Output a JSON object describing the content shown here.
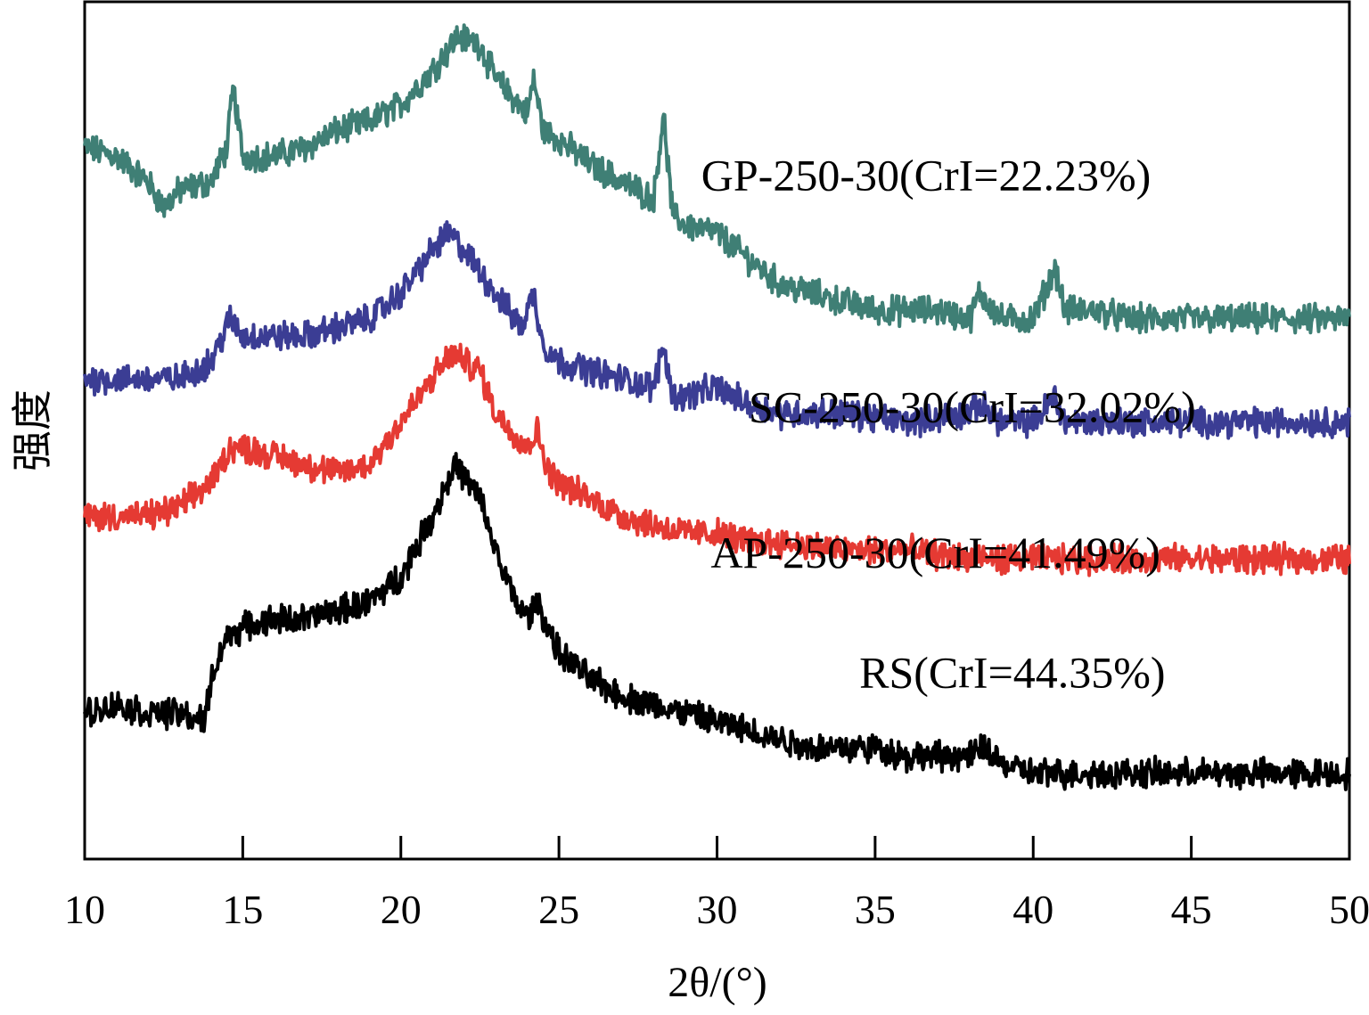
{
  "chart_data": {
    "type": "line",
    "xlabel": "2θ/(°)",
    "ylabel": "强度",
    "xlim": [
      10,
      50
    ],
    "x_ticks": [
      10,
      15,
      20,
      25,
      30,
      35,
      40,
      45,
      50
    ],
    "x_tick_labels": [
      "10",
      "15",
      "20",
      "25",
      "30",
      "35",
      "40",
      "45",
      "50"
    ],
    "y_ticks_shown": false,
    "grid": false,
    "legend": "none",
    "series": [
      {
        "name": "GP-250-30(CrI=22.23%)",
        "color": "#3f7f75",
        "points": [
          [
            10,
            0.83
          ],
          [
            11,
            0.82
          ],
          [
            12,
            0.79
          ],
          [
            12.5,
            0.76
          ],
          [
            13,
            0.78
          ],
          [
            14,
            0.79
          ],
          [
            14.5,
            0.83
          ],
          [
            14.7,
            0.9
          ],
          [
            15,
            0.82
          ],
          [
            16,
            0.82
          ],
          [
            17,
            0.83
          ],
          [
            18,
            0.85
          ],
          [
            19,
            0.86
          ],
          [
            20,
            0.88
          ],
          [
            21,
            0.92
          ],
          [
            21.8,
            0.96
          ],
          [
            22.5,
            0.95
          ],
          [
            23,
            0.91
          ],
          [
            24,
            0.87
          ],
          [
            24.2,
            0.91
          ],
          [
            24.5,
            0.85
          ],
          [
            25,
            0.84
          ],
          [
            26,
            0.81
          ],
          [
            27,
            0.79
          ],
          [
            28,
            0.77
          ],
          [
            28.3,
            0.87
          ],
          [
            28.6,
            0.75
          ],
          [
            29,
            0.74
          ],
          [
            30,
            0.73
          ],
          [
            31,
            0.7
          ],
          [
            32,
            0.67
          ],
          [
            33,
            0.66
          ],
          [
            34,
            0.65
          ],
          [
            35,
            0.64
          ],
          [
            36,
            0.64
          ],
          [
            37,
            0.64
          ],
          [
            38,
            0.63
          ],
          [
            38.3,
            0.66
          ],
          [
            39,
            0.63
          ],
          [
            40,
            0.63
          ],
          [
            40.7,
            0.69
          ],
          [
            41,
            0.64
          ],
          [
            42,
            0.64
          ],
          [
            43,
            0.63
          ],
          [
            44,
            0.63
          ],
          [
            45,
            0.63
          ],
          [
            46,
            0.63
          ],
          [
            47,
            0.63
          ],
          [
            48,
            0.63
          ],
          [
            49,
            0.63
          ],
          [
            50,
            0.63
          ]
        ]
      },
      {
        "name": "SC-250-30(CrI=32.02%)",
        "color": "#3b3d94",
        "points": [
          [
            10,
            0.56
          ],
          [
            12,
            0.56
          ],
          [
            13,
            0.56
          ],
          [
            14,
            0.58
          ],
          [
            14.6,
            0.63
          ],
          [
            15,
            0.61
          ],
          [
            16,
            0.61
          ],
          [
            17,
            0.61
          ],
          [
            18,
            0.62
          ],
          [
            19,
            0.63
          ],
          [
            20,
            0.66
          ],
          [
            21,
            0.71
          ],
          [
            21.5,
            0.73
          ],
          [
            22,
            0.71
          ],
          [
            23,
            0.66
          ],
          [
            23.8,
            0.62
          ],
          [
            24.2,
            0.66
          ],
          [
            24.5,
            0.6
          ],
          [
            25,
            0.58
          ],
          [
            26,
            0.57
          ],
          [
            27,
            0.56
          ],
          [
            28,
            0.55
          ],
          [
            28.3,
            0.6
          ],
          [
            28.6,
            0.54
          ],
          [
            29,
            0.54
          ],
          [
            30,
            0.55
          ],
          [
            31,
            0.53
          ],
          [
            32,
            0.52
          ],
          [
            34,
            0.52
          ],
          [
            36,
            0.51
          ],
          [
            38,
            0.52
          ],
          [
            38.3,
            0.53
          ],
          [
            39,
            0.51
          ],
          [
            40,
            0.51
          ],
          [
            40.7,
            0.54
          ],
          [
            41,
            0.51
          ],
          [
            42,
            0.51
          ],
          [
            44,
            0.51
          ],
          [
            46,
            0.51
          ],
          [
            48,
            0.51
          ],
          [
            50,
            0.51
          ]
        ]
      },
      {
        "name": "AP-250-30(CrI=41.49%)",
        "color": "#e53a33",
        "points": [
          [
            10,
            0.4
          ],
          [
            12,
            0.4
          ],
          [
            13,
            0.41
          ],
          [
            14,
            0.44
          ],
          [
            14.6,
            0.48
          ],
          [
            15,
            0.48
          ],
          [
            16,
            0.47
          ],
          [
            17,
            0.46
          ],
          [
            18,
            0.45
          ],
          [
            19,
            0.46
          ],
          [
            20,
            0.51
          ],
          [
            21,
            0.56
          ],
          [
            21.6,
            0.59
          ],
          [
            22.5,
            0.57
          ],
          [
            23,
            0.52
          ],
          [
            24,
            0.48
          ],
          [
            24.3,
            0.5
          ],
          [
            24.7,
            0.45
          ],
          [
            25,
            0.44
          ],
          [
            26,
            0.42
          ],
          [
            27,
            0.4
          ],
          [
            28,
            0.39
          ],
          [
            29,
            0.38
          ],
          [
            30,
            0.38
          ],
          [
            31,
            0.37
          ],
          [
            32,
            0.37
          ],
          [
            34,
            0.36
          ],
          [
            36,
            0.36
          ],
          [
            38,
            0.35
          ],
          [
            40,
            0.35
          ],
          [
            42,
            0.35
          ],
          [
            44,
            0.35
          ],
          [
            46,
            0.35
          ],
          [
            48,
            0.35
          ],
          [
            50,
            0.35
          ]
        ]
      },
      {
        "name": "RS(CrI=44.35%)",
        "color": "#000000",
        "points": [
          [
            10,
            0.17
          ],
          [
            11,
            0.18
          ],
          [
            12,
            0.17
          ],
          [
            13,
            0.17
          ],
          [
            13.8,
            0.16
          ],
          [
            14,
            0.21
          ],
          [
            14.5,
            0.26
          ],
          [
            15,
            0.27
          ],
          [
            16,
            0.28
          ],
          [
            17,
            0.28
          ],
          [
            18,
            0.29
          ],
          [
            19,
            0.3
          ],
          [
            20,
            0.33
          ],
          [
            21,
            0.4
          ],
          [
            21.7,
            0.46
          ],
          [
            22.5,
            0.42
          ],
          [
            23,
            0.36
          ],
          [
            23.5,
            0.31
          ],
          [
            24,
            0.28
          ],
          [
            24.3,
            0.3
          ],
          [
            25,
            0.24
          ],
          [
            26,
            0.21
          ],
          [
            27,
            0.19
          ],
          [
            28,
            0.18
          ],
          [
            29,
            0.17
          ],
          [
            30,
            0.16
          ],
          [
            31,
            0.15
          ],
          [
            32,
            0.14
          ],
          [
            33,
            0.13
          ],
          [
            34,
            0.13
          ],
          [
            35,
            0.13
          ],
          [
            36,
            0.12
          ],
          [
            37,
            0.12
          ],
          [
            38,
            0.12
          ],
          [
            38.5,
            0.13
          ],
          [
            39,
            0.11
          ],
          [
            40,
            0.1
          ],
          [
            42,
            0.1
          ],
          [
            44,
            0.1
          ],
          [
            46,
            0.1
          ],
          [
            48,
            0.1
          ],
          [
            50,
            0.1
          ]
        ]
      }
    ],
    "annotations": [
      {
        "text": "GP-250-30(CrI=22.23%)",
        "x": 29.5,
        "y": 0.78
      },
      {
        "text": "SC-250-30(CrI=32.02%)",
        "x": 31.0,
        "y": 0.51
      },
      {
        "text": "AP-250-30(CrI=41.49%)",
        "x": 29.8,
        "y": 0.34
      },
      {
        "text": "RS(CrI=44.35%)",
        "x": 34.5,
        "y": 0.2
      }
    ]
  }
}
